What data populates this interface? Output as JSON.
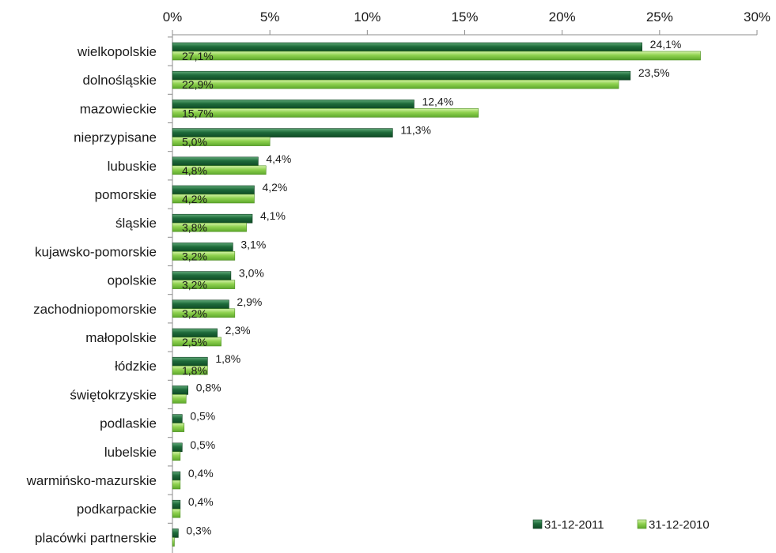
{
  "chart_data": {
    "type": "bar",
    "orientation": "horizontal",
    "title": "",
    "xlabel": "",
    "ylabel": "",
    "xlim": [
      0,
      30
    ],
    "x_ticks": [
      "0%",
      "5%",
      "10%",
      "15%",
      "20%",
      "25%",
      "30%"
    ],
    "axis_position": "top",
    "grid": false,
    "legend_position": "bottom-right",
    "categories": [
      "wielkopolskie",
      "dolnośląskie",
      "mazowieckie",
      "nieprzypisane",
      "lubuskie",
      "pomorskie",
      "śląskie",
      "kujawsko-pomorskie",
      "opolskie",
      "zachodniopomorskie",
      "małopolskie",
      "łódzkie",
      "świętokrzyskie",
      "podlaskie",
      "lubelskie",
      "warmińsko-mazurskie",
      "podkarpackie",
      "placówki partnerskie"
    ],
    "series": [
      {
        "name": "31-12-2011",
        "color": "#1e6b3a",
        "values": [
          24.1,
          23.5,
          12.4,
          11.3,
          4.4,
          4.2,
          4.1,
          3.1,
          3.0,
          2.9,
          2.3,
          1.8,
          0.8,
          0.5,
          0.5,
          0.4,
          0.4,
          0.3
        ],
        "labels": [
          "24,1%",
          "23,5%",
          "12,4%",
          "11,3%",
          "4,4%",
          "4,2%",
          "4,1%",
          "3,1%",
          "3,0%",
          "2,9%",
          "2,3%",
          "1,8%",
          "0,8%",
          "0,5%",
          "0,5%",
          "0,4%",
          "0,4%",
          "0,3%"
        ]
      },
      {
        "name": "31-12-2010",
        "color": "#8fd14f",
        "values": [
          27.1,
          22.9,
          15.7,
          5.0,
          4.8,
          4.2,
          3.8,
          3.2,
          3.2,
          3.2,
          2.5,
          1.8,
          0.7,
          0.6,
          0.4,
          0.4,
          0.4,
          0.1
        ],
        "labels": [
          "27,1%",
          "22,9%",
          "15,7%",
          "5,0%",
          "4,8%",
          "4,2%",
          "3,8%",
          "3,2%",
          "3,2%",
          "3,2%",
          "2,5%",
          "1,8%",
          "",
          "",
          "",
          "",
          "",
          ""
        ]
      }
    ]
  }
}
